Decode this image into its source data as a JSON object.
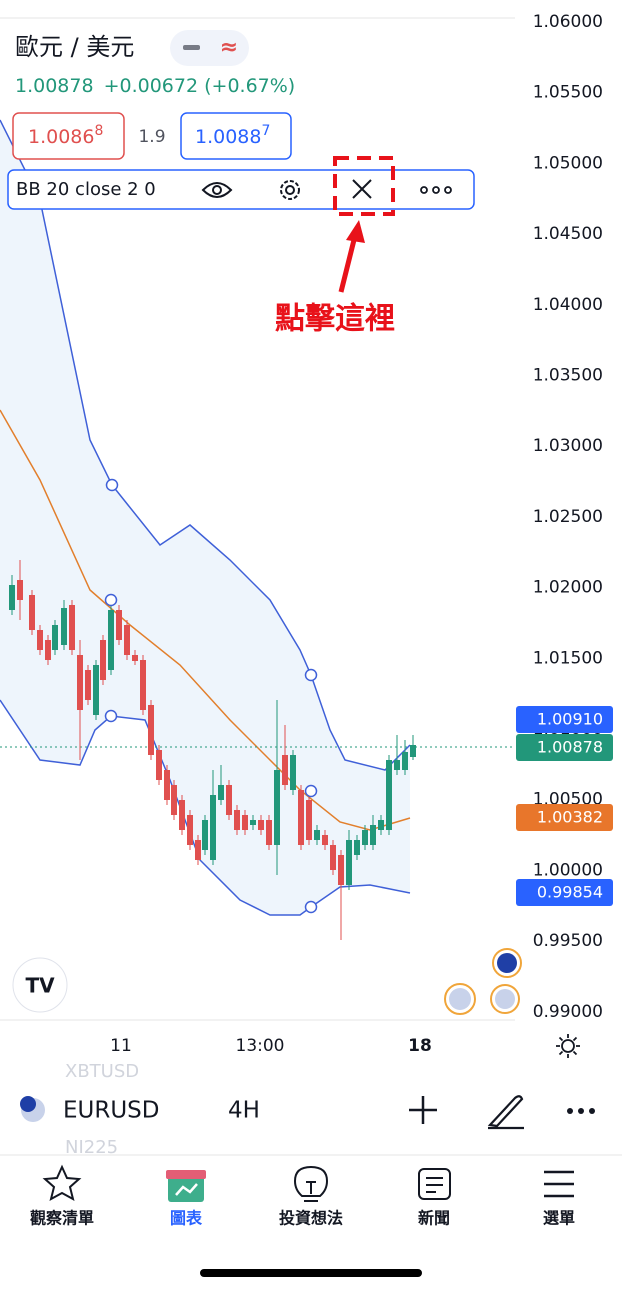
{
  "header": {
    "symbol_title": "歐元 / 美元",
    "price": "1.00878",
    "change": "+0.00672 (+0.67%)"
  },
  "quote": {
    "bid": "1.0086",
    "bid_sup": "8",
    "spread": "1.9",
    "ask": "1.0088",
    "ask_sup": "7"
  },
  "indicator": {
    "label": "BB 20 close 2 0"
  },
  "annotation": "點擊這裡",
  "price_axis": [
    "1.06000",
    "1.05500",
    "1.05000",
    "1.04500",
    "1.04000",
    "1.03500",
    "1.03000",
    "1.02500",
    "1.02000",
    "1.01500",
    "1.01000",
    "1.00500",
    "1.00000",
    "0.99500",
    "0.99000"
  ],
  "price_tags": {
    "upper": "1.00910",
    "last": "1.00878",
    "basis": "1.00382",
    "lower": "0.99854"
  },
  "time_axis": [
    "11",
    "13:00",
    "18"
  ],
  "toolbar": {
    "prev_symbol": "XBTUSD",
    "symbol": "EURUSD",
    "interval": "4H",
    "next_symbol": "NI225"
  },
  "nav": [
    "觀察清單",
    "圖表",
    "投資想法",
    "新聞",
    "選單"
  ]
}
